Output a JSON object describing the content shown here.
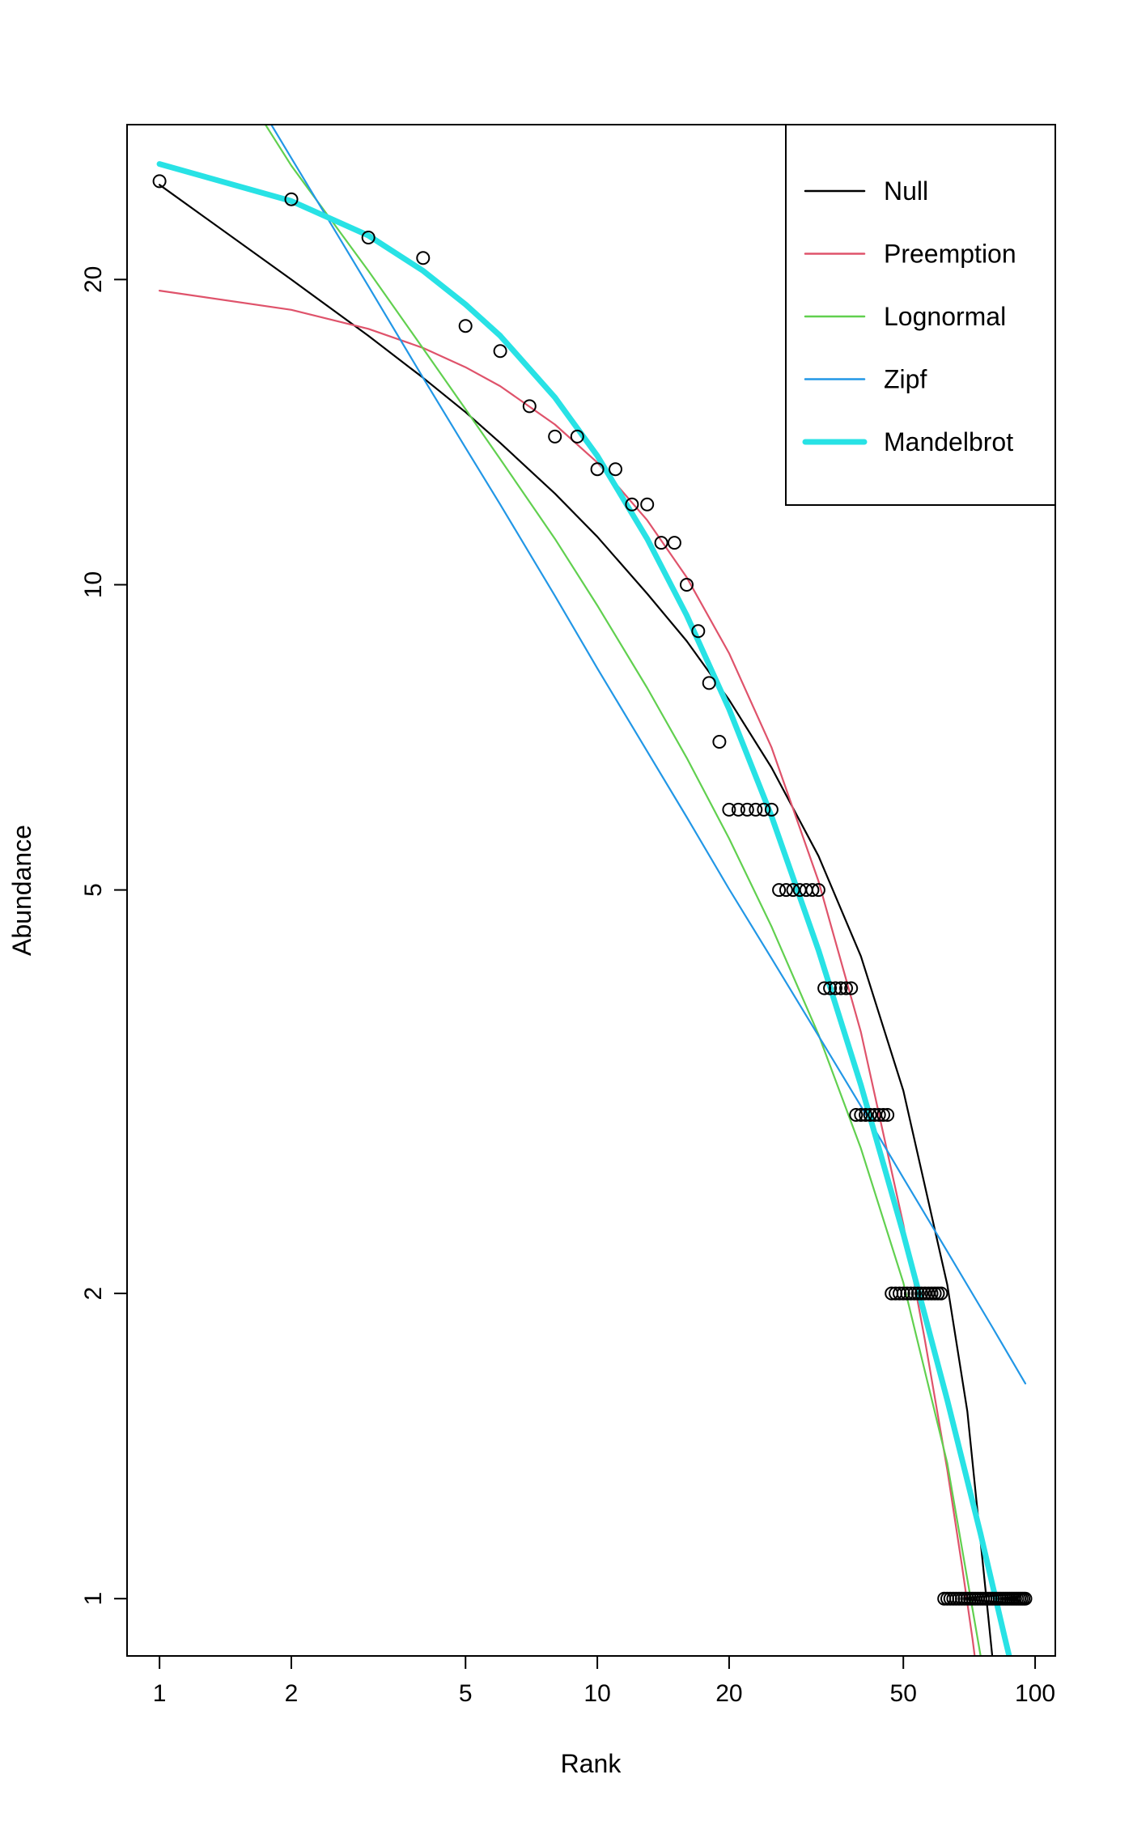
{
  "chart_data": {
    "type": "scatter",
    "title": "",
    "xlabel": "Rank",
    "ylabel": "Abundance",
    "xscale": "log",
    "yscale": "log",
    "xlim": [
      0.843,
      111.2
    ],
    "ylim": [
      0.878,
      28.43
    ],
    "x_ticks": [
      1,
      2,
      5,
      10,
      20,
      50,
      100
    ],
    "y_ticks": [
      1,
      2,
      5,
      10,
      20
    ],
    "grid": false,
    "legend_position": "topright",
    "point_color": "#000000",
    "points": [
      [
        1,
        25
      ],
      [
        2,
        24
      ],
      [
        3,
        22
      ],
      [
        4,
        21
      ],
      [
        5,
        18
      ],
      [
        6,
        17
      ],
      [
        7,
        15
      ],
      [
        8,
        14
      ],
      [
        9,
        14
      ],
      [
        10,
        13
      ],
      [
        11,
        13
      ],
      [
        12,
        12
      ],
      [
        13,
        12
      ],
      [
        14,
        11
      ],
      [
        15,
        11
      ],
      [
        16,
        10
      ],
      [
        17,
        9
      ],
      [
        18,
        8
      ],
      [
        19,
        7
      ],
      [
        20,
        6
      ],
      [
        21,
        6
      ],
      [
        22,
        6
      ],
      [
        23,
        6
      ],
      [
        24,
        6
      ],
      [
        25,
        6
      ],
      [
        26,
        5
      ],
      [
        27,
        5
      ],
      [
        28,
        5
      ],
      [
        29,
        5
      ],
      [
        30,
        5
      ],
      [
        31,
        5
      ],
      [
        32,
        5
      ],
      [
        33,
        4
      ],
      [
        34,
        4
      ],
      [
        35,
        4
      ],
      [
        36,
        4
      ],
      [
        37,
        4
      ],
      [
        38,
        4
      ],
      [
        39,
        3
      ],
      [
        40,
        3
      ],
      [
        41,
        3
      ],
      [
        42,
        3
      ],
      [
        43,
        3
      ],
      [
        44,
        3
      ],
      [
        45,
        3
      ],
      [
        46,
        3
      ],
      [
        47,
        2
      ],
      [
        48,
        2
      ],
      [
        49,
        2
      ],
      [
        50,
        2
      ],
      [
        51,
        2
      ],
      [
        52,
        2
      ],
      [
        53,
        2
      ],
      [
        54,
        2
      ],
      [
        55,
        2
      ],
      [
        56,
        2
      ],
      [
        57,
        2
      ],
      [
        58,
        2
      ],
      [
        59,
        2
      ],
      [
        60,
        2
      ],
      [
        61,
        2
      ],
      [
        62,
        1
      ],
      [
        63,
        1
      ],
      [
        64,
        1
      ],
      [
        65,
        1
      ],
      [
        66,
        1
      ],
      [
        67,
        1
      ],
      [
        68,
        1
      ],
      [
        69,
        1
      ],
      [
        70,
        1
      ],
      [
        71,
        1
      ],
      [
        72,
        1
      ],
      [
        73,
        1
      ],
      [
        74,
        1
      ],
      [
        75,
        1
      ],
      [
        76,
        1
      ],
      [
        77,
        1
      ],
      [
        78,
        1
      ],
      [
        79,
        1
      ],
      [
        80,
        1
      ],
      [
        81,
        1
      ],
      [
        82,
        1
      ],
      [
        83,
        1
      ],
      [
        84,
        1
      ],
      [
        85,
        1
      ],
      [
        86,
        1
      ],
      [
        87,
        1
      ],
      [
        88,
        1
      ],
      [
        89,
        1
      ],
      [
        90,
        1
      ],
      [
        91,
        1
      ],
      [
        92,
        1
      ],
      [
        93,
        1
      ],
      [
        94,
        1
      ],
      [
        95,
        1
      ]
    ],
    "series": [
      {
        "name": "Null",
        "color": "#000000",
        "line_width": 2.2,
        "x": [
          1,
          2,
          3,
          4,
          5,
          6,
          8,
          10,
          13,
          16,
          20,
          25,
          32,
          40,
          50,
          63,
          70,
          80,
          85
        ],
        "y": [
          24.8,
          20.0,
          17.6,
          16.0,
          14.8,
          13.8,
          12.3,
          11.15,
          9.8,
          8.8,
          7.7,
          6.6,
          5.4,
          4.3,
          3.17,
          2.04,
          1.53,
          0.87,
          0.58
        ]
      },
      {
        "name": "Preemption",
        "color": "#DF536B",
        "line_width": 2.2,
        "x": [
          1,
          2,
          3,
          4,
          5,
          6,
          8,
          10,
          13,
          16,
          20,
          25,
          32,
          40,
          50,
          56,
          63,
          68,
          72,
          74
        ],
        "y": [
          19.5,
          18.67,
          17.88,
          17.12,
          16.39,
          15.7,
          14.39,
          13.2,
          11.58,
          10.17,
          8.56,
          6.91,
          5.1,
          3.62,
          2.34,
          1.8,
          1.34,
          1.08,
          0.91,
          0.83
        ]
      },
      {
        "name": "Lognormal",
        "color": "#61D04F",
        "line_width": 2.2,
        "x": [
          1,
          2,
          3,
          4,
          5,
          6,
          8,
          10,
          13,
          16,
          20,
          25,
          32,
          40,
          50,
          63,
          75,
          80
        ],
        "y": [
          41.6,
          25.9,
          20.4,
          17.1,
          14.9,
          13.3,
          11.1,
          9.54,
          7.91,
          6.75,
          5.62,
          4.6,
          3.6,
          2.78,
          2.05,
          1.36,
          0.88,
          0.7
        ]
      },
      {
        "name": "Zipf",
        "color": "#2297E6",
        "line_width": 2.2,
        "x": [
          1,
          2,
          3,
          4,
          5,
          6,
          8,
          10,
          13,
          16,
          20,
          25,
          32,
          40,
          50,
          63,
          80,
          95
        ],
        "y": [
          43.4,
          26.35,
          19.7,
          16.0,
          13.65,
          12.0,
          9.75,
          8.27,
          6.85,
          5.9,
          5.01,
          4.28,
          3.59,
          3.06,
          2.6,
          2.2,
          1.85,
          1.63
        ]
      },
      {
        "name": "Mandelbrot",
        "color": "#28E2E5",
        "line_width": 7,
        "x": [
          1,
          2,
          3,
          4,
          5,
          6,
          8,
          10,
          13,
          16,
          20,
          25,
          32,
          40,
          50,
          63,
          75,
          85,
          90
        ],
        "y": [
          26.0,
          23.9,
          22.1,
          20.4,
          18.9,
          17.6,
          15.3,
          13.4,
          11.1,
          9.33,
          7.54,
          5.91,
          4.36,
          3.21,
          2.29,
          1.57,
          1.16,
          0.92,
          0.83
        ]
      }
    ]
  }
}
